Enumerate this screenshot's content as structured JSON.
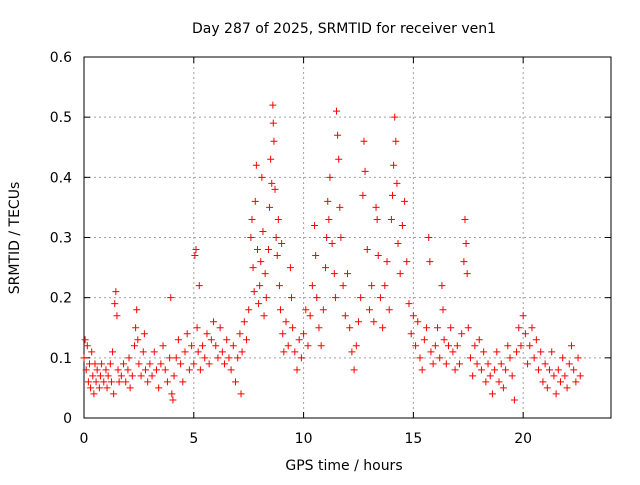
{
  "chart_data": {
    "type": "scatter",
    "title": "Day 287 of 2025, SRMTID for receiver ven1",
    "xlabel": "GPS time / hours",
    "ylabel": "SRMTID / TECUs",
    "xlim": [
      0,
      24
    ],
    "ylim": [
      0,
      0.6
    ],
    "xticks": [
      0,
      5,
      10,
      15,
      20
    ],
    "xtick_labels": [
      "0",
      "5",
      "10",
      "15",
      "20"
    ],
    "yticks": [
      0,
      0.1,
      0.2,
      0.3,
      0.4,
      0.5,
      0.6
    ],
    "ytick_labels": [
      "0",
      "0.1",
      "0.2",
      "0.3",
      "0.4",
      "0.5",
      "0.6"
    ],
    "grid": true,
    "marker": "+",
    "color": "#ff0000",
    "series": [
      {
        "name": "SRMTID",
        "points": [
          [
            0.0,
            0.1
          ],
          [
            0.05,
            0.13
          ],
          [
            0.1,
            0.08
          ],
          [
            0.15,
            0.12
          ],
          [
            0.2,
            0.06
          ],
          [
            0.25,
            0.09
          ],
          [
            0.3,
            0.05
          ],
          [
            0.35,
            0.11
          ],
          [
            0.4,
            0.07
          ],
          [
            0.45,
            0.04
          ],
          [
            0.5,
            0.09
          ],
          [
            0.55,
            0.06
          ],
          [
            0.6,
            0.08
          ],
          [
            0.7,
            0.05
          ],
          [
            0.75,
            0.07
          ],
          [
            0.8,
            0.09
          ],
          [
            0.9,
            0.06
          ],
          [
            1.0,
            0.08
          ],
          [
            1.05,
            0.05
          ],
          [
            1.1,
            0.07
          ],
          [
            1.2,
            0.09
          ],
          [
            1.25,
            0.06
          ],
          [
            1.3,
            0.11
          ],
          [
            1.35,
            0.04
          ],
          [
            1.4,
            0.19
          ],
          [
            1.45,
            0.21
          ],
          [
            1.5,
            0.17
          ],
          [
            1.55,
            0.08
          ],
          [
            1.6,
            0.06
          ],
          [
            1.7,
            0.07
          ],
          [
            1.8,
            0.09
          ],
          [
            1.9,
            0.06
          ],
          [
            2.0,
            0.08
          ],
          [
            2.05,
            0.1
          ],
          [
            2.1,
            0.05
          ],
          [
            2.2,
            0.07
          ],
          [
            2.3,
            0.12
          ],
          [
            2.35,
            0.15
          ],
          [
            2.4,
            0.18
          ],
          [
            2.45,
            0.13
          ],
          [
            2.5,
            0.09
          ],
          [
            2.6,
            0.07
          ],
          [
            2.7,
            0.11
          ],
          [
            2.75,
            0.14
          ],
          [
            2.8,
            0.08
          ],
          [
            2.9,
            0.06
          ],
          [
            3.0,
            0.09
          ],
          [
            3.1,
            0.07
          ],
          [
            3.2,
            0.11
          ],
          [
            3.3,
            0.08
          ],
          [
            3.4,
            0.05
          ],
          [
            3.5,
            0.09
          ],
          [
            3.6,
            0.12
          ],
          [
            3.7,
            0.08
          ],
          [
            3.8,
            0.06
          ],
          [
            3.9,
            0.1
          ],
          [
            3.95,
            0.2
          ],
          [
            4.0,
            0.04
          ],
          [
            4.05,
            0.03
          ],
          [
            4.1,
            0.07
          ],
          [
            4.2,
            0.1
          ],
          [
            4.3,
            0.13
          ],
          [
            4.4,
            0.09
          ],
          [
            4.5,
            0.06
          ],
          [
            4.6,
            0.11
          ],
          [
            4.7,
            0.14
          ],
          [
            4.8,
            0.08
          ],
          [
            4.9,
            0.12
          ],
          [
            5.0,
            0.09
          ],
          [
            5.05,
            0.27
          ],
          [
            5.1,
            0.28
          ],
          [
            5.15,
            0.15
          ],
          [
            5.2,
            0.11
          ],
          [
            5.25,
            0.22
          ],
          [
            5.3,
            0.08
          ],
          [
            5.4,
            0.12
          ],
          [
            5.5,
            0.1
          ],
          [
            5.6,
            0.14
          ],
          [
            5.7,
            0.09
          ],
          [
            5.8,
            0.13
          ],
          [
            5.9,
            0.16
          ],
          [
            6.0,
            0.12
          ],
          [
            6.1,
            0.1
          ],
          [
            6.2,
            0.15
          ],
          [
            6.3,
            0.11
          ],
          [
            6.4,
            0.09
          ],
          [
            6.5,
            0.13
          ],
          [
            6.6,
            0.1
          ],
          [
            6.7,
            0.08
          ],
          [
            6.8,
            0.12
          ],
          [
            6.9,
            0.06
          ],
          [
            7.0,
            0.1
          ],
          [
            7.1,
            0.14
          ],
          [
            7.15,
            0.04
          ],
          [
            7.2,
            0.11
          ],
          [
            7.3,
            0.16
          ],
          [
            7.4,
            0.13
          ],
          [
            7.5,
            0.18
          ],
          [
            7.6,
            0.3
          ],
          [
            7.65,
            0.33
          ],
          [
            7.7,
            0.25
          ],
          [
            7.75,
            0.21
          ],
          [
            7.8,
            0.36
          ],
          [
            7.85,
            0.42
          ],
          [
            7.9,
            0.28
          ],
          [
            7.95,
            0.19
          ],
          [
            8.0,
            0.22
          ],
          [
            8.05,
            0.26
          ],
          [
            8.1,
            0.4
          ],
          [
            8.15,
            0.31
          ],
          [
            8.2,
            0.17
          ],
          [
            8.25,
            0.24
          ],
          [
            8.3,
            0.2
          ],
          [
            8.4,
            0.28
          ],
          [
            8.45,
            0.35
          ],
          [
            8.5,
            0.43
          ],
          [
            8.55,
            0.39
          ],
          [
            8.6,
            0.52
          ],
          [
            8.62,
            0.49
          ],
          [
            8.65,
            0.46
          ],
          [
            8.7,
            0.38
          ],
          [
            8.75,
            0.3
          ],
          [
            8.8,
            0.27
          ],
          [
            8.85,
            0.33
          ],
          [
            8.9,
            0.22
          ],
          [
            8.95,
            0.18
          ],
          [
            9.0,
            0.29
          ],
          [
            9.05,
            0.14
          ],
          [
            9.1,
            0.11
          ],
          [
            9.2,
            0.16
          ],
          [
            9.3,
            0.12
          ],
          [
            9.4,
            0.25
          ],
          [
            9.45,
            0.2
          ],
          [
            9.5,
            0.15
          ],
          [
            9.6,
            0.11
          ],
          [
            9.7,
            0.08
          ],
          [
            9.8,
            0.13
          ],
          [
            9.9,
            0.1
          ],
          [
            10.0,
            0.14
          ],
          [
            10.1,
            0.18
          ],
          [
            10.2,
            0.12
          ],
          [
            10.3,
            0.17
          ],
          [
            10.4,
            0.22
          ],
          [
            10.5,
            0.32
          ],
          [
            10.55,
            0.27
          ],
          [
            10.6,
            0.2
          ],
          [
            10.7,
            0.15
          ],
          [
            10.8,
            0.12
          ],
          [
            10.9,
            0.18
          ],
          [
            11.0,
            0.25
          ],
          [
            11.05,
            0.3
          ],
          [
            11.1,
            0.36
          ],
          [
            11.15,
            0.33
          ],
          [
            11.2,
            0.4
          ],
          [
            11.3,
            0.29
          ],
          [
            11.4,
            0.24
          ],
          [
            11.45,
            0.2
          ],
          [
            11.5,
            0.51
          ],
          [
            11.55,
            0.47
          ],
          [
            11.6,
            0.43
          ],
          [
            11.65,
            0.35
          ],
          [
            11.7,
            0.3
          ],
          [
            11.8,
            0.22
          ],
          [
            11.9,
            0.17
          ],
          [
            12.0,
            0.24
          ],
          [
            12.1,
            0.15
          ],
          [
            12.2,
            0.11
          ],
          [
            12.3,
            0.08
          ],
          [
            12.4,
            0.12
          ],
          [
            12.5,
            0.16
          ],
          [
            12.6,
            0.2
          ],
          [
            12.7,
            0.37
          ],
          [
            12.75,
            0.46
          ],
          [
            12.8,
            0.41
          ],
          [
            12.9,
            0.28
          ],
          [
            13.0,
            0.18
          ],
          [
            13.1,
            0.22
          ],
          [
            13.2,
            0.16
          ],
          [
            13.3,
            0.35
          ],
          [
            13.35,
            0.33
          ],
          [
            13.4,
            0.27
          ],
          [
            13.5,
            0.2
          ],
          [
            13.6,
            0.15
          ],
          [
            13.7,
            0.22
          ],
          [
            13.8,
            0.26
          ],
          [
            13.9,
            0.18
          ],
          [
            14.0,
            0.33
          ],
          [
            14.05,
            0.37
          ],
          [
            14.1,
            0.42
          ],
          [
            14.15,
            0.5
          ],
          [
            14.2,
            0.46
          ],
          [
            14.25,
            0.39
          ],
          [
            14.3,
            0.29
          ],
          [
            14.4,
            0.24
          ],
          [
            14.5,
            0.32
          ],
          [
            14.6,
            0.36
          ],
          [
            14.7,
            0.26
          ],
          [
            14.8,
            0.19
          ],
          [
            14.9,
            0.14
          ],
          [
            15.0,
            0.17
          ],
          [
            15.1,
            0.12
          ],
          [
            15.2,
            0.16
          ],
          [
            15.3,
            0.1
          ],
          [
            15.4,
            0.08
          ],
          [
            15.5,
            0.13
          ],
          [
            15.6,
            0.15
          ],
          [
            15.7,
            0.3
          ],
          [
            15.75,
            0.26
          ],
          [
            15.8,
            0.11
          ],
          [
            15.9,
            0.09
          ],
          [
            16.0,
            0.12
          ],
          [
            16.1,
            0.15
          ],
          [
            16.2,
            0.1
          ],
          [
            16.3,
            0.22
          ],
          [
            16.35,
            0.18
          ],
          [
            16.4,
            0.13
          ],
          [
            16.5,
            0.09
          ],
          [
            16.6,
            0.12
          ],
          [
            16.7,
            0.15
          ],
          [
            16.8,
            0.11
          ],
          [
            16.9,
            0.08
          ],
          [
            17.0,
            0.12
          ],
          [
            17.1,
            0.09
          ],
          [
            17.2,
            0.14
          ],
          [
            17.3,
            0.26
          ],
          [
            17.35,
            0.33
          ],
          [
            17.4,
            0.29
          ],
          [
            17.45,
            0.24
          ],
          [
            17.5,
            0.15
          ],
          [
            17.6,
            0.1
          ],
          [
            17.7,
            0.07
          ],
          [
            17.8,
            0.12
          ],
          [
            17.9,
            0.09
          ],
          [
            18.0,
            0.13
          ],
          [
            18.1,
            0.08
          ],
          [
            18.2,
            0.11
          ],
          [
            18.3,
            0.06
          ],
          [
            18.4,
            0.09
          ],
          [
            18.5,
            0.07
          ],
          [
            18.6,
            0.04
          ],
          [
            18.7,
            0.08
          ],
          [
            18.8,
            0.11
          ],
          [
            18.9,
            0.06
          ],
          [
            19.0,
            0.09
          ],
          [
            19.1,
            0.05
          ],
          [
            19.2,
            0.08
          ],
          [
            19.3,
            0.12
          ],
          [
            19.4,
            0.1
          ],
          [
            19.5,
            0.07
          ],
          [
            19.6,
            0.03
          ],
          [
            19.7,
            0.11
          ],
          [
            19.8,
            0.15
          ],
          [
            19.9,
            0.12
          ],
          [
            20.0,
            0.17
          ],
          [
            20.1,
            0.14
          ],
          [
            20.2,
            0.09
          ],
          [
            20.3,
            0.12
          ],
          [
            20.4,
            0.15
          ],
          [
            20.5,
            0.1
          ],
          [
            20.6,
            0.13
          ],
          [
            20.7,
            0.08
          ],
          [
            20.8,
            0.11
          ],
          [
            20.9,
            0.06
          ],
          [
            21.0,
            0.09
          ],
          [
            21.1,
            0.05
          ],
          [
            21.2,
            0.08
          ],
          [
            21.3,
            0.11
          ],
          [
            21.4,
            0.07
          ],
          [
            21.5,
            0.04
          ],
          [
            21.6,
            0.08
          ],
          [
            21.7,
            0.06
          ],
          [
            21.8,
            0.1
          ],
          [
            21.9,
            0.07
          ],
          [
            22.0,
            0.05
          ],
          [
            22.1,
            0.09
          ],
          [
            22.2,
            0.12
          ],
          [
            22.3,
            0.08
          ],
          [
            22.4,
            0.06
          ],
          [
            22.5,
            0.1
          ],
          [
            22.6,
            0.07
          ]
        ]
      }
    ]
  }
}
